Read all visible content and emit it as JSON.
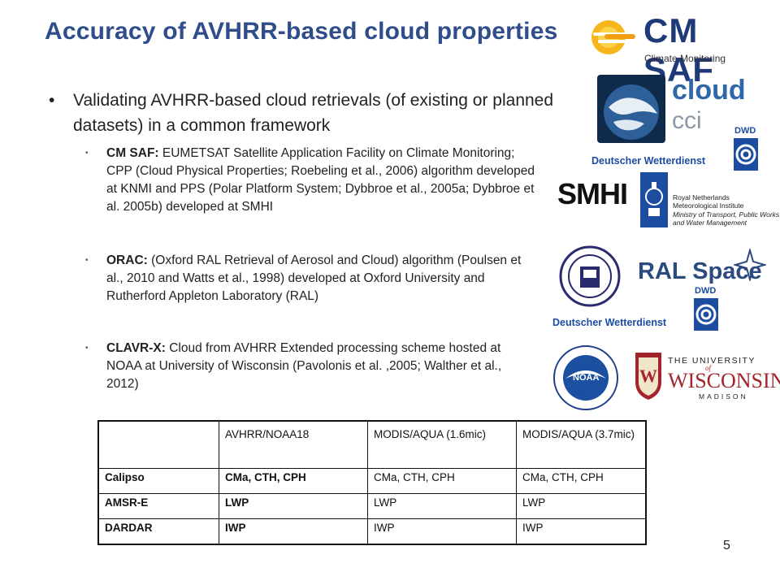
{
  "title": "Accuracy of AVHRR-based cloud properties",
  "main_bullet": "Validating AVHRR-based cloud retrievals (of existing or planned datasets) in a common framework",
  "sub_bullets": [
    {
      "term": "CM SAF:",
      "text": " EUMETSAT Satellite Application Facility on Climate Monitoring; CPP (Cloud Physical Properties; Roebeling et al., 2006) algorithm developed at KNMI and PPS (Polar Platform System; Dybbroe et al., 2005a; Dybbroe et al. 2005b) developed at SMHI"
    },
    {
      "term": "ORAC:",
      "text": " (Oxford RAL Retrieval of Aerosol and Cloud) algorithm (Poulsen et al., 2010 and Watts et al., 1998) developed at Oxford University and Rutherford Appleton Laboratory (RAL)"
    },
    {
      "term": "CLAVR-X:",
      "text": " Cloud from AVHRR Extended processing scheme hosted at NOAA at University of Wisconsin (Pavolonis et al. ,2005; Walther et al., 2012)"
    }
  ],
  "logos": {
    "cmsaf": {
      "name": "CM SAF",
      "sub": "Climate Monitoring"
    },
    "cloud_cci": {
      "line1": "cloud",
      "line2": "cci"
    },
    "dwd": {
      "abbr": "DWD",
      "name": "Deutscher Wetterdienst"
    },
    "smhi": {
      "name": "SMHI"
    },
    "knmi": {
      "line1": "Royal Netherlands",
      "line2": "Meteorological Institute",
      "line3": "Ministry of Transport, Public Works",
      "line4": "and Water Management"
    },
    "ral": {
      "name": "RAL Space"
    },
    "noaa": {
      "name": "NOAA"
    },
    "wisconsin": {
      "line1": "THE UNIVERSITY",
      "line2": "of",
      "line3": "WISCONSIN",
      "line4": "MADISON"
    }
  },
  "table": {
    "headers": [
      "",
      "AVHRR/NOAA18",
      "MODIS/AQUA (1.6mic)",
      "MODIS/AQUA (3.7mic)"
    ],
    "rows": [
      [
        "Calipso",
        "CMa, CTH, CPH",
        "CMa, CTH, CPH",
        "CMa, CTH, CPH"
      ],
      [
        "AMSR-E",
        "LWP",
        "LWP",
        "LWP"
      ],
      [
        "DARDAR",
        "IWP",
        "IWP",
        "IWP"
      ]
    ]
  },
  "page_number": "5",
  "colors": {
    "title": "#2e4d8a",
    "cmsaf": "#1f3a78",
    "dwd": "#1c4da1",
    "cci": "#2f67a8"
  }
}
